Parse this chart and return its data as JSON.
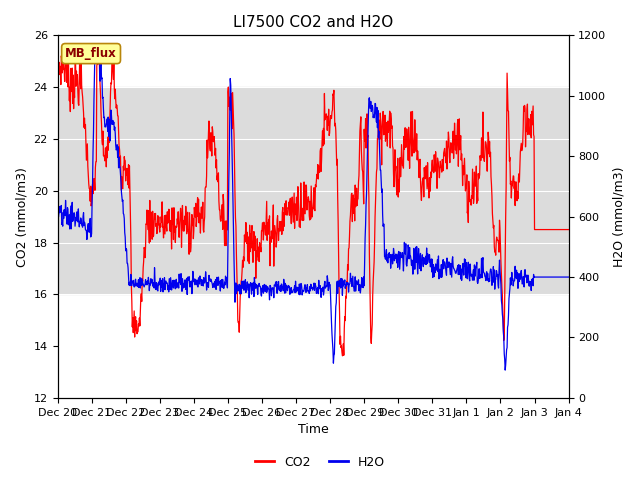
{
  "title": "LI7500 CO2 and H2O",
  "xlabel": "Time",
  "ylabel_left": "CO2 (mmol/m3)",
  "ylabel_right": "H2O (mmol/m3)",
  "ylim_left": [
    12,
    26
  ],
  "ylim_right": [
    0,
    1200
  ],
  "yticks_left": [
    12,
    14,
    16,
    18,
    20,
    22,
    24,
    26
  ],
  "yticks_right": [
    0,
    200,
    400,
    600,
    800,
    1000,
    1200
  ],
  "co2_color": "#FF0000",
  "h2o_color": "#0000EE",
  "band_color": "#DCDCDC",
  "annotation_text": "MB_flux",
  "legend_co2": "CO2",
  "legend_h2o": "H2O",
  "title_fontsize": 11,
  "axis_label_fontsize": 9,
  "tick_fontsize": 8,
  "legend_fontsize": 9,
  "bg_color": "#F5F5F5"
}
